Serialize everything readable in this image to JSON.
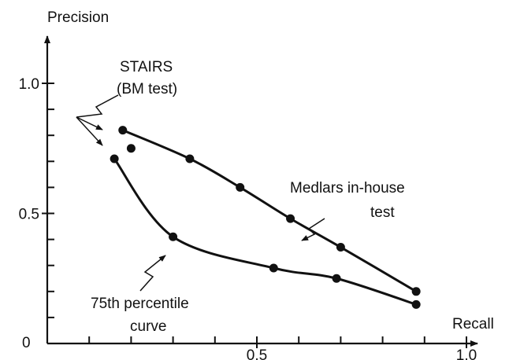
{
  "chart_data": {
    "type": "line",
    "title": "",
    "xlabel": "Recall",
    "ylabel": "Precision",
    "xlim": [
      0,
      1.2
    ],
    "ylim": [
      0,
      1.1
    ],
    "x_ticks": [
      {
        "value": 0.5,
        "label": "0.5"
      },
      {
        "value": 1.0,
        "label": "1.0"
      }
    ],
    "x_minor_ticks": [
      0.1,
      0.2,
      0.3,
      0.4,
      0.6,
      0.7,
      0.8,
      0.9
    ],
    "y_ticks": [
      {
        "value": 0.5,
        "label": "0.5"
      },
      {
        "value": 1.0,
        "label": "1.0"
      }
    ],
    "y_minor_ticks": [
      0.1,
      0.2,
      0.3,
      0.4,
      0.6,
      0.7,
      0.8,
      0.9
    ],
    "origin_label": "0",
    "grid": false,
    "series": [
      {
        "name": "Medlars in-house test",
        "x": [
          0.18,
          0.34,
          0.46,
          0.58,
          0.7,
          0.88
        ],
        "y": [
          0.82,
          0.71,
          0.6,
          0.48,
          0.37,
          0.2
        ]
      },
      {
        "name": "75th percentile curve",
        "x": [
          0.16,
          0.3,
          0.54,
          0.69,
          0.88
        ],
        "y": [
          0.71,
          0.41,
          0.29,
          0.25,
          0.15
        ]
      },
      {
        "name": "STAIRS (BM test)",
        "x": [
          0.2
        ],
        "y": [
          0.75
        ]
      }
    ],
    "annotations": [
      {
        "lines": [
          "STAIRS",
          "(BM test)"
        ],
        "target_series": "STAIRS (BM test)"
      },
      {
        "lines": [
          "Medlars in-house",
          "test"
        ],
        "target_series": "Medlars in-house test"
      },
      {
        "lines": [
          "75th percentile",
          "curve"
        ],
        "target_series": "75th percentile curve"
      }
    ]
  }
}
